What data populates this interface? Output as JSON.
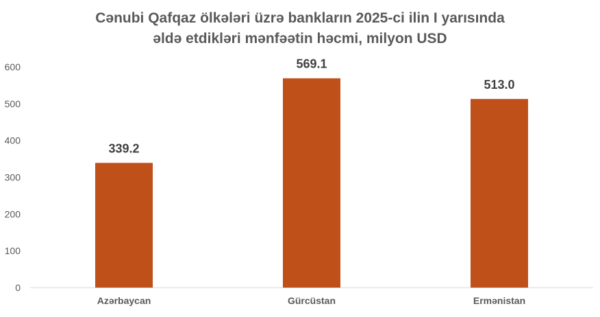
{
  "chart_data": {
    "type": "bar",
    "title": "Cənubi Qafqaz ölkələri üzrə bankların 2025-ci ilin I yarısında\nəldə etdikləri mənfəətin həcmi, milyon USD",
    "categories": [
      "Azərbaycan",
      "Gürcüstan",
      "Ermənistan"
    ],
    "values": [
      339.2,
      569.1,
      513.0
    ],
    "data_labels": [
      "339.2",
      "569.1",
      "513.0"
    ],
    "ylim": [
      0,
      600
    ],
    "y_ticks": [
      0,
      100,
      200,
      300,
      400,
      500,
      600
    ],
    "xlabel": "",
    "ylabel": "",
    "grid": false,
    "legend": "none",
    "bar_color": "#C0501A",
    "axis_color": "#D9D9D9"
  }
}
